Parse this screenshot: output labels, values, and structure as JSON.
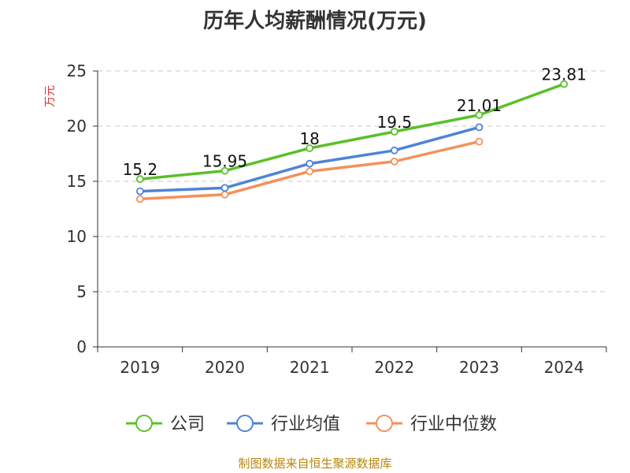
{
  "chart_data": {
    "type": "line",
    "title": "历年人均薪酬情况(万元)",
    "ylabel": "万元",
    "xlabel": "",
    "categories": [
      "2019",
      "2020",
      "2021",
      "2022",
      "2023",
      "2024"
    ],
    "ylim": [
      0,
      25
    ],
    "yticks": [
      0,
      5,
      10,
      15,
      20,
      25
    ],
    "grid": true,
    "legend_position": "bottom",
    "series": [
      {
        "name": "公司",
        "color": "#5ac02a",
        "values": [
          15.2,
          15.95,
          18,
          19.5,
          21.01,
          23.81
        ],
        "labels": [
          "15.2",
          "15.95",
          "18",
          "19.5",
          "21.01",
          "23.81"
        ]
      },
      {
        "name": "行业均值",
        "color": "#4f83d6",
        "values": [
          14.1,
          14.4,
          16.6,
          17.8,
          19.9,
          null
        ]
      },
      {
        "name": "行业中位数",
        "color": "#f4915a",
        "values": [
          13.4,
          13.8,
          15.9,
          16.8,
          18.6,
          null
        ]
      }
    ],
    "ylabel_color": "#e0322b"
  },
  "footer": {
    "source": "制图数据来自恒生聚源数据库"
  }
}
